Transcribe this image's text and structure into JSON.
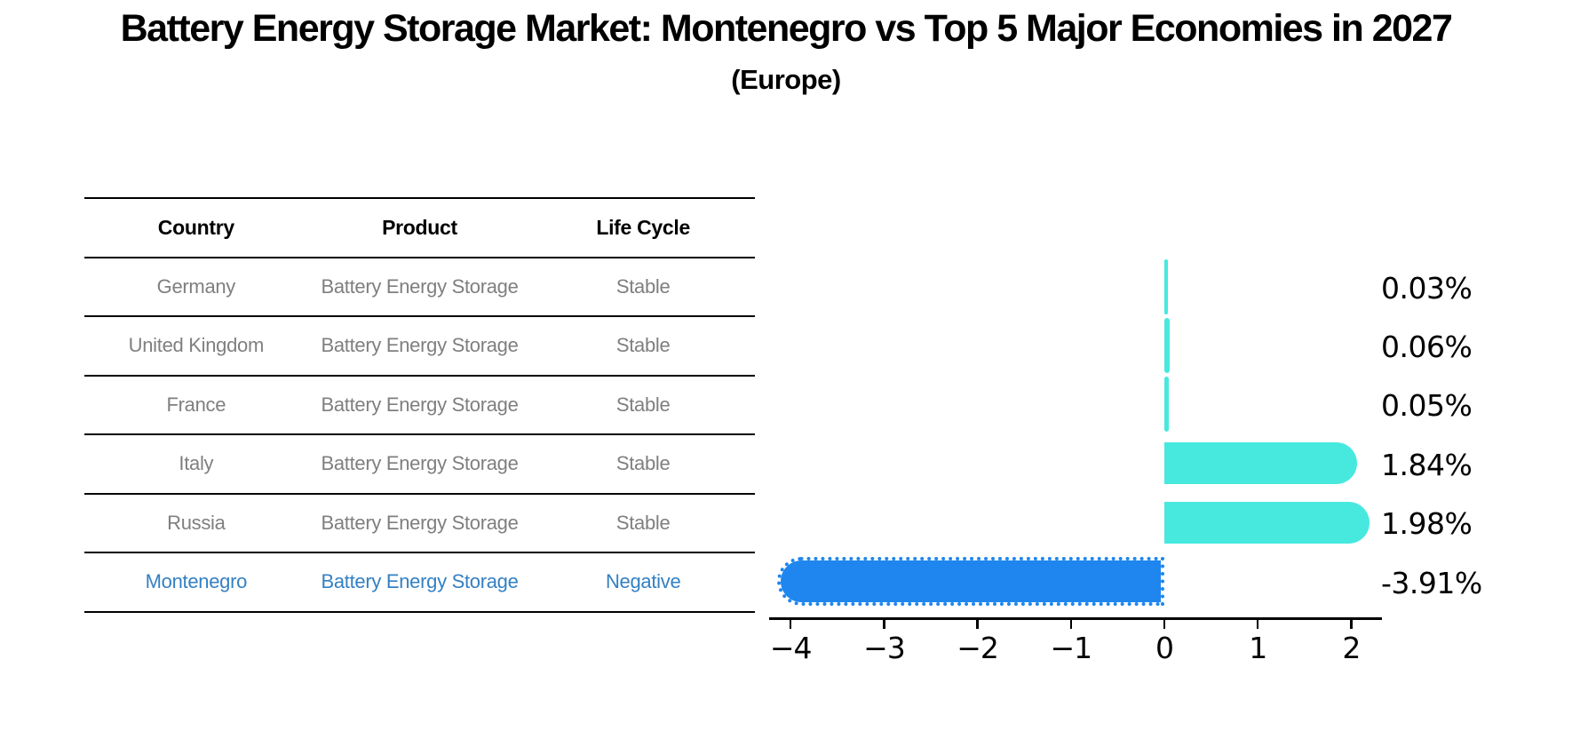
{
  "title": "Battery Energy Storage Market: Montenegro vs Top 5 Major Economies in 2027",
  "subtitle": "(Europe)",
  "table": {
    "headers": [
      "Country",
      "Product",
      "Life Cycle"
    ],
    "rows": [
      {
        "country": "Germany",
        "product": "Battery Energy Storage",
        "life_cycle": "Stable",
        "highlight": false
      },
      {
        "country": "United Kingdom",
        "product": "Battery Energy Storage",
        "life_cycle": "Stable",
        "highlight": false
      },
      {
        "country": "France",
        "product": "Battery Energy Storage",
        "life_cycle": "Stable",
        "highlight": false
      },
      {
        "country": "Italy",
        "product": "Battery Energy Storage",
        "life_cycle": "Stable",
        "highlight": false
      },
      {
        "country": "Russia",
        "product": "Battery Energy Storage",
        "life_cycle": "Stable",
        "highlight": false
      },
      {
        "country": "Montenegro",
        "product": "Battery Energy Storage",
        "life_cycle": "Negative",
        "highlight": true
      }
    ]
  },
  "chart_data": {
    "type": "bar",
    "orientation": "horizontal",
    "title": "Battery Energy Storage Market: Montenegro vs Top 5 Major Economies in 2027",
    "subtitle": "(Europe)",
    "categories": [
      "Germany",
      "United Kingdom",
      "France",
      "Italy",
      "Russia",
      "Montenegro"
    ],
    "values": [
      0.03,
      0.06,
      0.05,
      1.84,
      1.98,
      -3.91
    ],
    "value_labels": [
      "0.03%",
      "0.06%",
      "0.05%",
      "1.84%",
      "1.98%",
      "-3.91%"
    ],
    "xlabel": "",
    "ylabel": "",
    "xlim": [
      -4.25,
      2.35
    ],
    "x_ticks": [
      {
        "value": -4,
        "label": "−4"
      },
      {
        "value": -3,
        "label": "−3"
      },
      {
        "value": -2,
        "label": "−2"
      },
      {
        "value": -1,
        "label": "−1"
      },
      {
        "value": 0,
        "label": "0"
      },
      {
        "value": 1,
        "label": "1"
      },
      {
        "value": 2,
        "label": "2"
      }
    ],
    "grid": false,
    "legend": false,
    "bar_color_positive": "#47e9df",
    "bar_color_negative": "#1e86ee",
    "negative_bar_style": "dotted-outline"
  },
  "colors": {
    "background": "#ffffff",
    "text_primary": "#000000",
    "text_muted": "#7f7f7f",
    "highlight_text": "#3480c3",
    "bar_positive": "#47e9df",
    "bar_negative": "#1e86ee"
  }
}
